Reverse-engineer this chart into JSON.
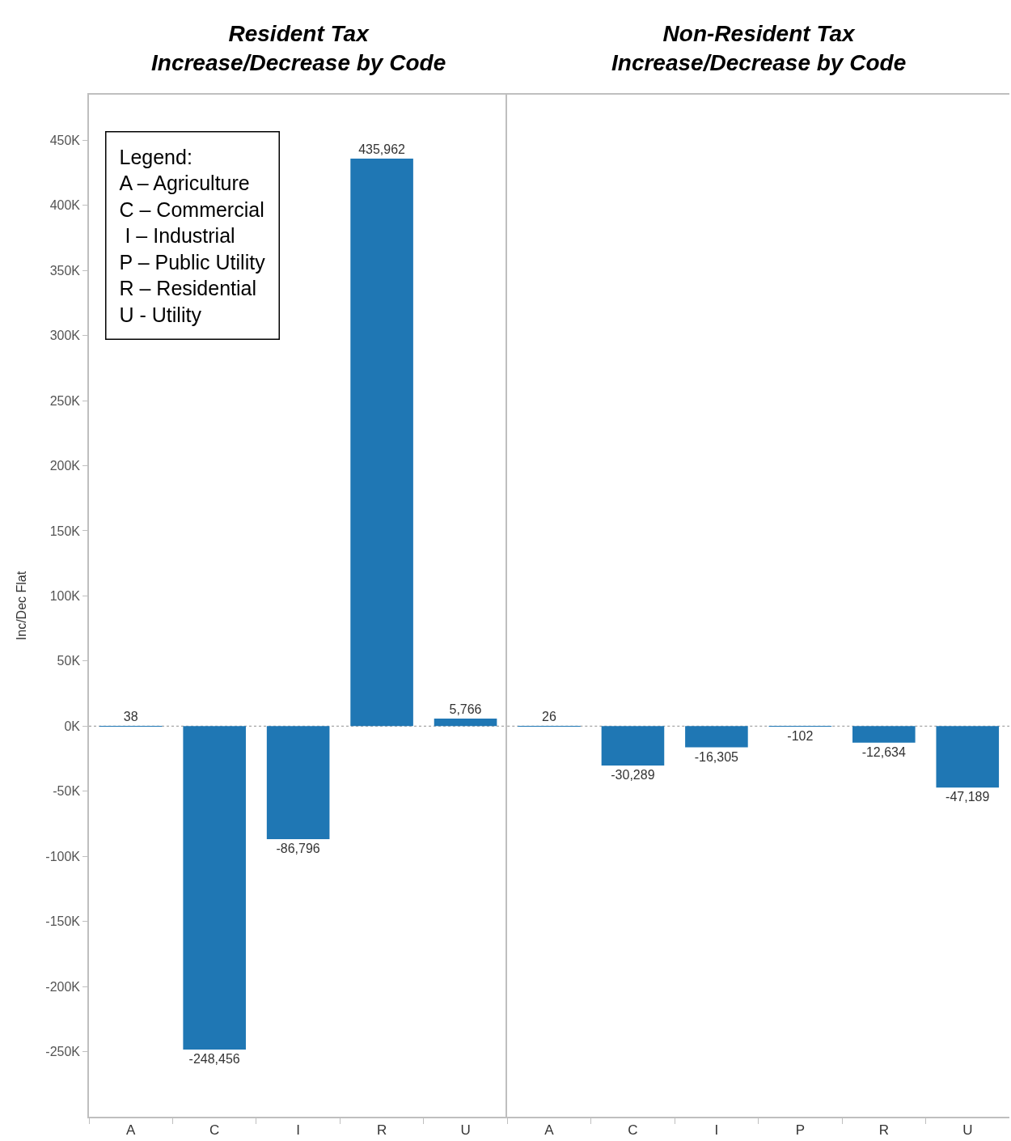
{
  "chart_data": [
    {
      "type": "bar",
      "title": "Resident Tax\nIncrease/Decrease by Code",
      "ylabel": "Inc/Dec Flat",
      "categories": [
        "A",
        "C",
        "I",
        "R",
        "U"
      ],
      "values": [
        38,
        -248456,
        -86796,
        435962,
        5766
      ],
      "value_labels": [
        "38",
        "-248,456",
        "-86,796",
        "435,962",
        "5,766"
      ],
      "color": "#1f77b4",
      "ylim": [
        -300000,
        485000
      ],
      "yticks": [
        {
          "value": -250000,
          "label": "-250K"
        },
        {
          "value": -200000,
          "label": "-200K"
        },
        {
          "value": -150000,
          "label": "-150K"
        },
        {
          "value": -100000,
          "label": "-100K"
        },
        {
          "value": -50000,
          "label": "-50K"
        },
        {
          "value": 0,
          "label": "0K"
        },
        {
          "value": 50000,
          "label": "50K"
        },
        {
          "value": 100000,
          "label": "100K"
        },
        {
          "value": 150000,
          "label": "150K"
        },
        {
          "value": 200000,
          "label": "200K"
        },
        {
          "value": 250000,
          "label": "250K"
        },
        {
          "value": 300000,
          "label": "300K"
        },
        {
          "value": 350000,
          "label": "350K"
        },
        {
          "value": 400000,
          "label": "400K"
        },
        {
          "value": 450000,
          "label": "450K"
        }
      ],
      "ref_lines": [
        {
          "axis": "y",
          "value": 0,
          "color": "#a6a6a6",
          "line_style": "dotted"
        }
      ],
      "annotations": [
        "Legend:\nA – Agriculture\nC – Commercial\n I – Industrial\nP – Public Utility\nR – Residential\nU - Utility"
      ]
    },
    {
      "type": "bar",
      "title": "Non-Resident Tax\nIncrease/Decrease by Code",
      "categories": [
        "A",
        "C",
        "I",
        "P",
        "R",
        "U"
      ],
      "values": [
        26,
        -30289,
        -16305,
        -102,
        -12634,
        -47189
      ],
      "value_labels": [
        "26",
        "-30,289",
        "-16,305",
        "-102",
        "-12,634",
        "-47,189"
      ],
      "color": "#1f77b4",
      "ylim": [
        -300000,
        485000
      ],
      "tick_labels": "x",
      "ref_lines": [
        {
          "axis": "y",
          "value": 0,
          "color": "#a6a6a6",
          "line_style": "dotted"
        }
      ]
    }
  ]
}
